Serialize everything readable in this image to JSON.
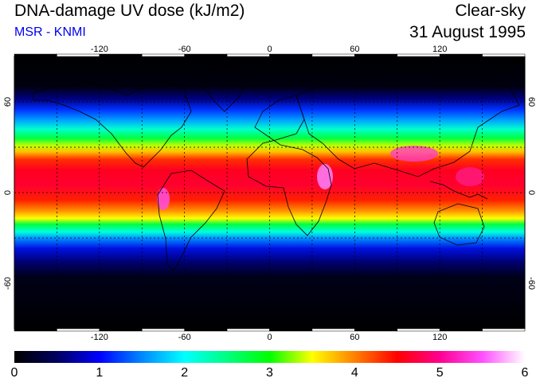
{
  "header": {
    "title": "DNA-damage UV dose (kJ/m2)",
    "source": "MSR - KNMI",
    "condition": "Clear-sky",
    "date": "31 August 1995"
  },
  "map": {
    "longitude_ticks": [
      "-120",
      "-60",
      "0",
      "60",
      "120"
    ],
    "latitude_ticks": [
      "60",
      "0",
      "-60"
    ],
    "grid_longitudes": [
      -150,
      -120,
      -90,
      -60,
      -30,
      0,
      30,
      60,
      90,
      120,
      150
    ],
    "grid_latitudes": [
      60,
      30,
      0,
      -30,
      -60
    ],
    "extent": {
      "lon": [
        -180,
        180
      ],
      "lat": [
        -90,
        90
      ]
    }
  },
  "colorbar": {
    "labels": [
      "0",
      "1",
      "2",
      "3",
      "4",
      "5",
      "6"
    ],
    "range": [
      0,
      6
    ],
    "stops": [
      {
        "value": 0.0,
        "color": "#000000"
      },
      {
        "value": 0.5,
        "color": "#000060"
      },
      {
        "value": 1.0,
        "color": "#0000ff"
      },
      {
        "value": 1.5,
        "color": "#0088ff"
      },
      {
        "value": 2.0,
        "color": "#00ffff"
      },
      {
        "value": 2.5,
        "color": "#00ff80"
      },
      {
        "value": 3.0,
        "color": "#00ff00"
      },
      {
        "value": 3.5,
        "color": "#ffff00"
      },
      {
        "value": 4.0,
        "color": "#ff8000"
      },
      {
        "value": 4.5,
        "color": "#ff0000"
      },
      {
        "value": 5.0,
        "color": "#ff0090"
      },
      {
        "value": 5.5,
        "color": "#ff50ff"
      },
      {
        "value": 6.0,
        "color": "#ffffff"
      }
    ]
  },
  "field_bands": [
    {
      "lat": 90,
      "color": "#000000"
    },
    {
      "lat": 70,
      "color": "#000010"
    },
    {
      "lat": 62,
      "color": "#000080"
    },
    {
      "lat": 55,
      "color": "#0030ff"
    },
    {
      "lat": 48,
      "color": "#00a0ff"
    },
    {
      "lat": 42,
      "color": "#00ffd0"
    },
    {
      "lat": 36,
      "color": "#00ff40"
    },
    {
      "lat": 31,
      "color": "#c0ff00"
    },
    {
      "lat": 27,
      "color": "#ffc000"
    },
    {
      "lat": 22,
      "color": "#ff3000"
    },
    {
      "lat": 15,
      "color": "#ff0020"
    },
    {
      "lat": 5,
      "color": "#ff0030"
    },
    {
      "lat": -5,
      "color": "#ff2000"
    },
    {
      "lat": -12,
      "color": "#ff9000"
    },
    {
      "lat": -17,
      "color": "#ffff00"
    },
    {
      "lat": -21,
      "color": "#00ff40"
    },
    {
      "lat": -26,
      "color": "#00ffe0"
    },
    {
      "lat": -31,
      "color": "#0080ff"
    },
    {
      "lat": -37,
      "color": "#0010e0"
    },
    {
      "lat": -46,
      "color": "#000070"
    },
    {
      "lat": -56,
      "color": "#000018"
    },
    {
      "lat": -90,
      "color": "#000000"
    }
  ],
  "colors": {
    "gridline": "#000000",
    "coastline": "#000000",
    "source_text": "#0000ee"
  }
}
